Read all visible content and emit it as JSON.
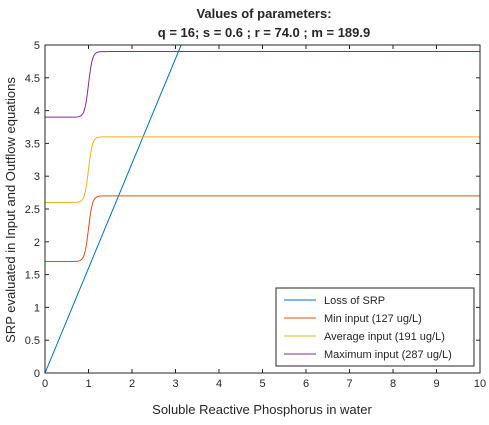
{
  "chart_data": {
    "type": "line",
    "title": "Values of parameters:",
    "subtitle": "q = 16; s = 0.6 ; r = 74.0 ; m = 189.9",
    "xlabel": "Soluble Reactive Phosphorus in water",
    "ylabel": "SRP evaluated in Input and Outflow equations",
    "xlim": [
      0,
      10
    ],
    "ylim": [
      0,
      5
    ],
    "xticks": [
      0,
      1,
      2,
      3,
      4,
      5,
      6,
      7,
      8,
      9,
      10
    ],
    "yticks": [
      0,
      0.5,
      1,
      1.5,
      2,
      2.5,
      3,
      3.5,
      4,
      4.5,
      5
    ],
    "xtick_labels": [
      "0",
      "1",
      "2",
      "3",
      "4",
      "5",
      "6",
      "7",
      "8",
      "9",
      "10"
    ],
    "ytick_labels": [
      "0",
      "0.5",
      "1",
      "1.5",
      "2",
      "2.5",
      "3",
      "3.5",
      "4",
      "4.5",
      "5"
    ],
    "grid": false,
    "legend_position": "bottom-right",
    "series": [
      {
        "name": "Loss of SRP",
        "color": "#0072BD",
        "kind": "linear",
        "x": [
          0,
          3.13
        ],
        "y": [
          0,
          5
        ]
      },
      {
        "name": "Min input (127 ug/L)",
        "color": "#D95319",
        "kind": "sigmoid",
        "low": 1.7,
        "high": 2.7,
        "midpoint": 1.0,
        "x": [
          0,
          0.8,
          1.0,
          1.2,
          10
        ],
        "y": [
          1.7,
          1.75,
          2.2,
          2.65,
          2.7
        ]
      },
      {
        "name": "Average input (191 ug/L)",
        "color": "#EDB120",
        "kind": "sigmoid",
        "low": 2.6,
        "high": 3.6,
        "midpoint": 1.0,
        "x": [
          0,
          0.8,
          1.0,
          1.2,
          10
        ],
        "y": [
          2.6,
          2.65,
          3.1,
          3.55,
          3.6
        ]
      },
      {
        "name": "Maximum input (287 ug/L)",
        "color": "#7E2F8E",
        "kind": "sigmoid",
        "low": 3.9,
        "high": 4.9,
        "midpoint": 1.0,
        "x": [
          0,
          0.8,
          1.0,
          1.2,
          10
        ],
        "y": [
          3.9,
          3.95,
          4.4,
          4.85,
          4.9
        ]
      }
    ]
  }
}
